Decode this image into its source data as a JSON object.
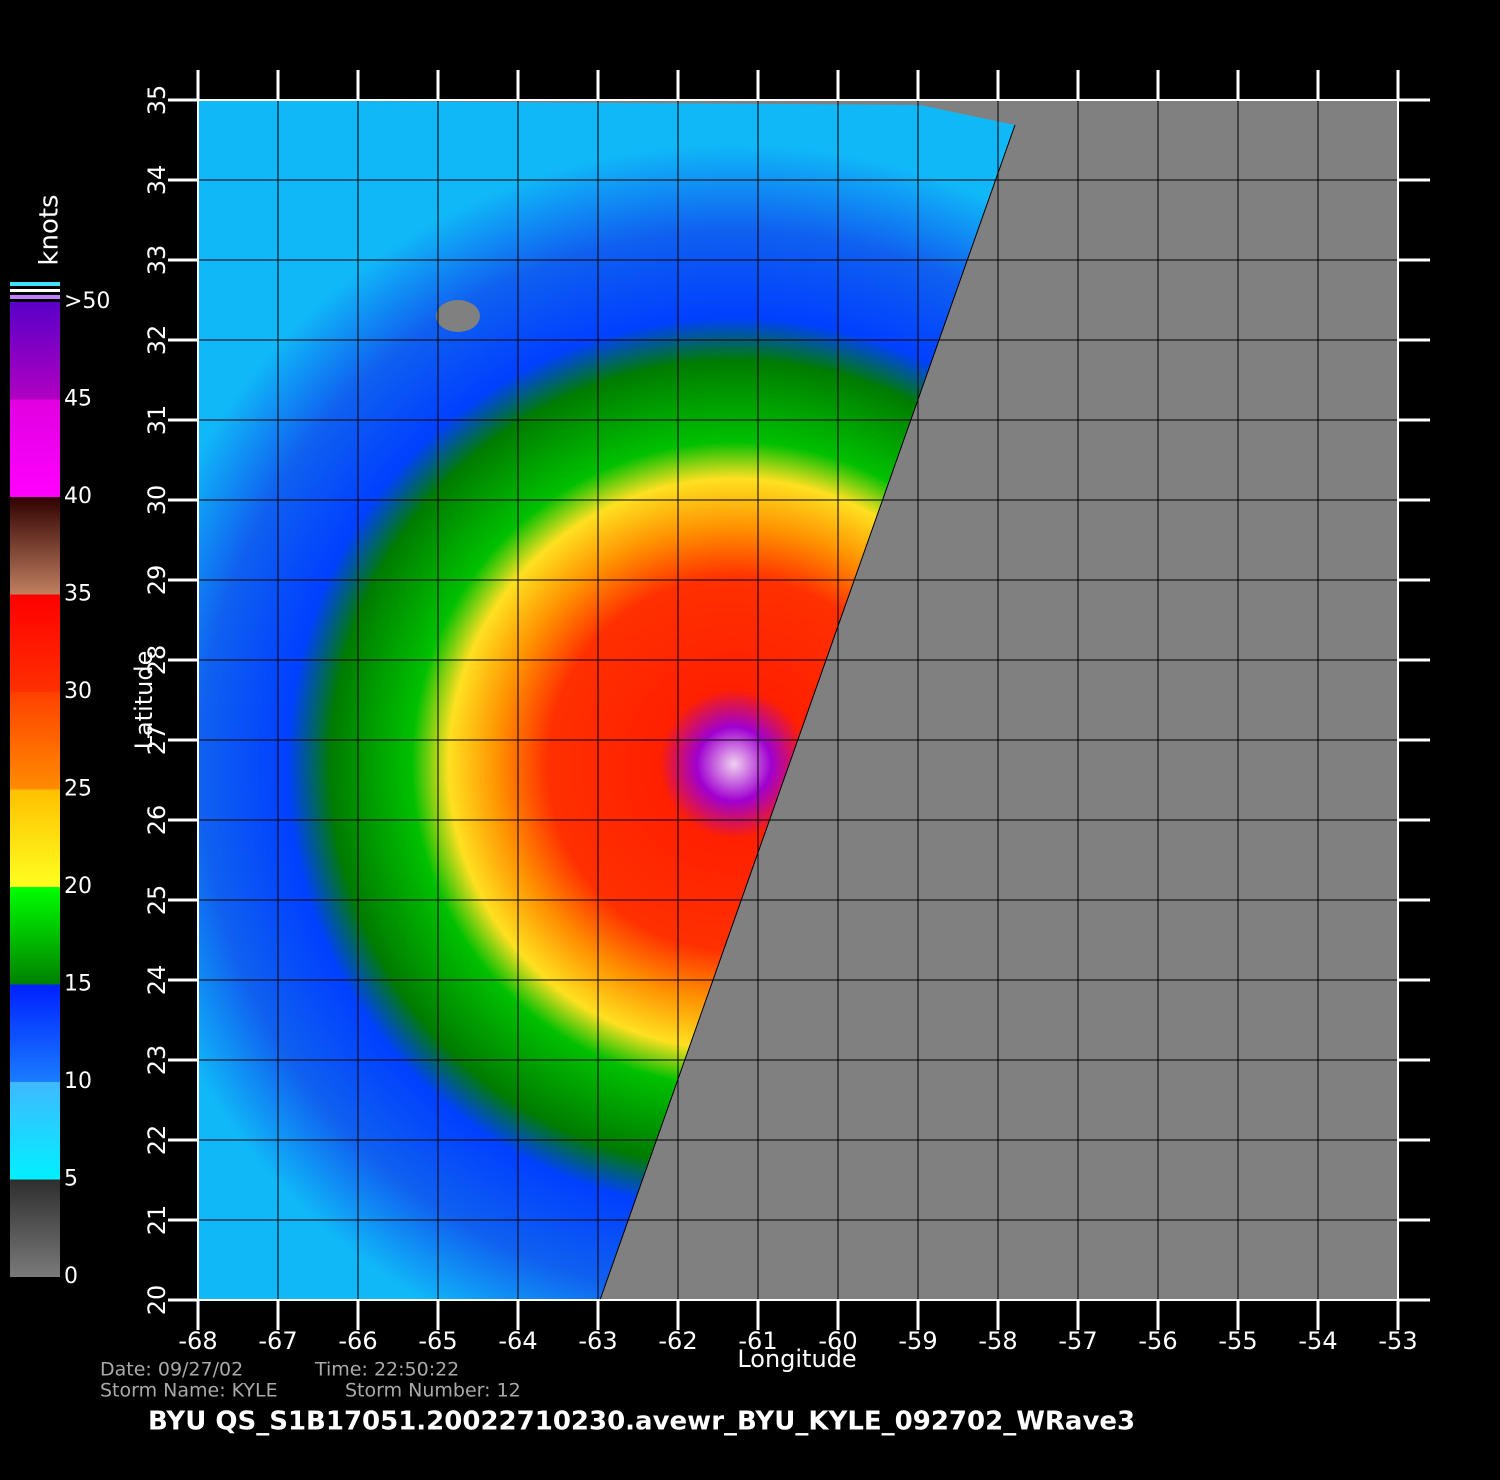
{
  "map": {
    "lonlim": [
      -68,
      -53
    ],
    "latlim": [
      20,
      35
    ],
    "lonticks": [
      -68,
      -67,
      -66,
      -65,
      -64,
      -63,
      -62,
      -61,
      -60,
      -59,
      -58,
      -57,
      -56,
      -55,
      -54,
      -53
    ],
    "latticks": [
      20,
      21,
      22,
      23,
      24,
      25,
      26,
      27,
      28,
      29,
      30,
      31,
      32,
      33,
      34,
      35
    ],
    "xlabel": "Longitude",
    "ylabel": "Latitude",
    "grid": true,
    "colorbar": {
      "label": "knots",
      "lim": [
        0,
        50
      ],
      "ticks": [
        0,
        5,
        10,
        15,
        20,
        25,
        30,
        35,
        40,
        45,
        {
          "value": 50,
          "label": ">50"
        }
      ],
      "colors": [
        [
          "#7a7a7a",
          "#2e2e2e"
        ],
        [
          "#00f0ff",
          "#40b8ff"
        ],
        [
          "#1a7cff",
          "#0020ff"
        ],
        [
          "#008000",
          "#00ff00"
        ],
        [
          "#ffff20",
          "#ffc000"
        ],
        [
          "#ff8c00",
          "#ff4000"
        ],
        [
          "#ff3000",
          "#ff0000"
        ],
        [
          "#c08060",
          "#300000"
        ],
        [
          "#ff00ff",
          "#e000e0"
        ],
        [
          "#b000c0",
          "#5a00c8"
        ]
      ]
    },
    "footer": {
      "date": "Date: 09/27/02",
      "time": "Time: 22:50:22",
      "storm_name": "Storm Name: KYLE",
      "storm_number": "Storm Number: 12",
      "title": "BYU QS_S1B17051.20022710230.avewr_BYU_KYLE_092702_WRave3"
    }
  }
}
